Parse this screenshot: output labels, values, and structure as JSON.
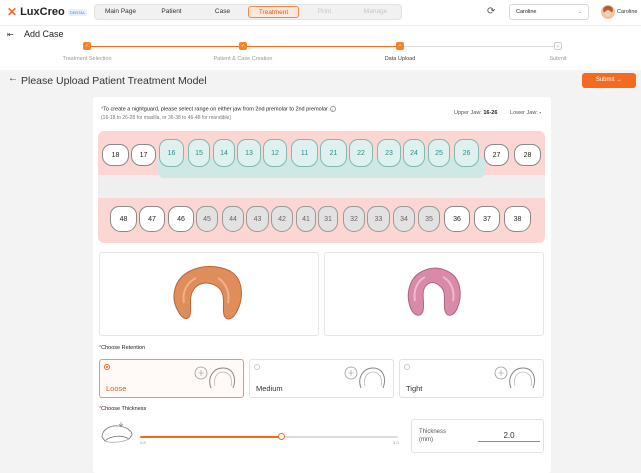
{
  "app": {
    "logo_text": "LuxCreo",
    "logo_badge": "DENTAL",
    "nav": [
      {
        "label": "Main Page",
        "state": "normal"
      },
      {
        "label": "Patient",
        "state": "normal"
      },
      {
        "label": "Case",
        "state": "normal"
      },
      {
        "label": "Treatment",
        "state": "active"
      },
      {
        "label": "Print",
        "state": "disabled"
      },
      {
        "label": "Manage",
        "state": "disabled"
      }
    ],
    "selected_user": "Caroline",
    "avatar_name": "Caroline"
  },
  "subheader": {
    "title": "Add Case",
    "steps": [
      {
        "label": "Treatment Selection",
        "done": true
      },
      {
        "label": "Patient & Case Creation",
        "done": true
      },
      {
        "label": "Data Upload",
        "done": true
      },
      {
        "label": "Submit",
        "done": false
      }
    ]
  },
  "page": {
    "title": "Please Upload Patient Treatment Model",
    "submit_label": "Submit  →"
  },
  "teeth": {
    "instruction": "To create a nightguard, please select range on either jaw from 2nd premolar to 2nd premolar",
    "hint": "(16-18 to 26-28 for maxilla, or 36-38 to 46-48 for mandible)",
    "upper_jaw_label": "Upper Jaw:",
    "upper_jaw_value": "16-26",
    "lower_jaw_label": "Lower Jaw:",
    "lower_jaw_value": "-",
    "upper": [
      "18",
      "17",
      "16",
      "15",
      "14",
      "13",
      "12",
      "11",
      "21",
      "22",
      "23",
      "24",
      "25",
      "26",
      "27",
      "28"
    ],
    "lower": [
      "48",
      "47",
      "46",
      "45",
      "44",
      "43",
      "42",
      "41",
      "31",
      "32",
      "33",
      "34",
      "35",
      "36",
      "37",
      "38"
    ],
    "upper_selected": [
      "16",
      "15",
      "14",
      "13",
      "12",
      "11",
      "21",
      "22",
      "23",
      "24",
      "25",
      "26"
    ]
  },
  "retention": {
    "label": "Choose Retention",
    "options": [
      {
        "label": "Loose",
        "selected": true
      },
      {
        "label": "Medium",
        "selected": false
      },
      {
        "label": "Tight",
        "selected": false
      }
    ]
  },
  "thickness": {
    "label": "Choose Thickness",
    "min_label": "0.8",
    "max_label": "3.0",
    "min": 0.8,
    "max": 3.0,
    "value": 2.0,
    "field_label": "Thickness (mm)",
    "field_value": "2.0"
  },
  "colors": {
    "accent": "#f26b21",
    "selected_tooth": "#2a8e89",
    "upper_model": "#e08d5c",
    "lower_model": "#d98aa8"
  }
}
